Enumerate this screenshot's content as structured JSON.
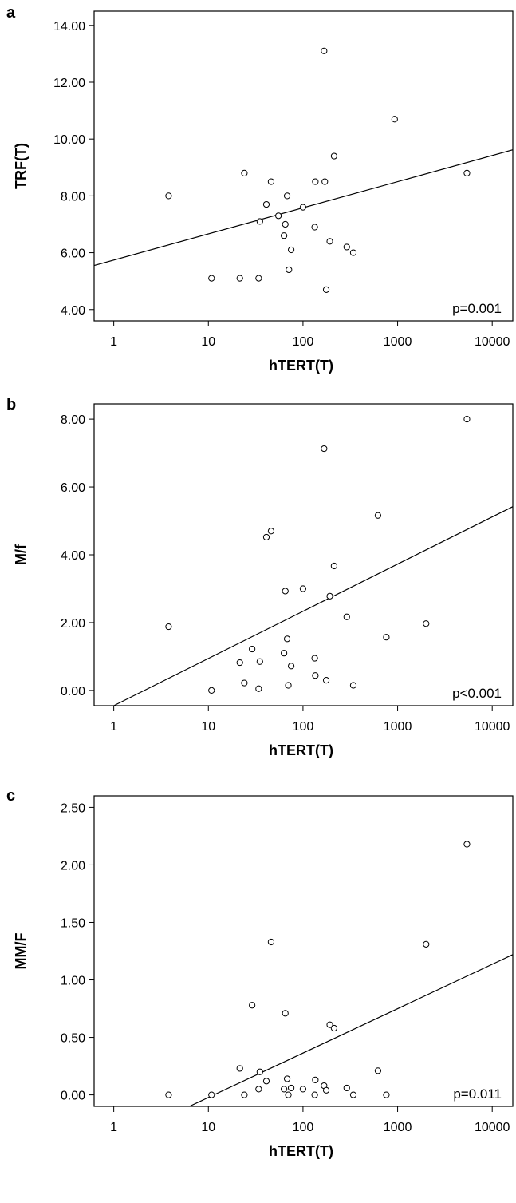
{
  "colors": {
    "background": "#ffffff",
    "ink": "#000000"
  },
  "chart_data": [
    {
      "type": "scatter",
      "panel": "a",
      "xlabel": "hTERT(T)",
      "ylabel": "TRF(T)",
      "xscale": "log",
      "xlim": [
        0.62,
        16500
      ],
      "xticks": [
        1,
        10,
        100,
        1000,
        10000
      ],
      "xtick_labels": [
        "1",
        "10",
        "100",
        "1000",
        "10000"
      ],
      "ylim": [
        3.6,
        14.5
      ],
      "yticks": [
        4,
        6,
        8,
        10,
        12,
        14
      ],
      "ytick_labels": [
        "4.00",
        "6.00",
        "8.00",
        "10.00",
        "12.00",
        "14.00"
      ],
      "annotation": "p=0.001",
      "fit_line": {
        "x": [
          0.62,
          16500
        ],
        "y": [
          5.55,
          9.62
        ]
      },
      "points": [
        {
          "x": 3.8,
          "y": 8.0
        },
        {
          "x": 10.8,
          "y": 5.1
        },
        {
          "x": 21.5,
          "y": 5.1
        },
        {
          "x": 24,
          "y": 8.8
        },
        {
          "x": 34,
          "y": 5.1
        },
        {
          "x": 35,
          "y": 7.1
        },
        {
          "x": 41,
          "y": 7.7
        },
        {
          "x": 46,
          "y": 8.5
        },
        {
          "x": 55,
          "y": 7.3
        },
        {
          "x": 63,
          "y": 6.6
        },
        {
          "x": 65,
          "y": 7.0
        },
        {
          "x": 68,
          "y": 8.0
        },
        {
          "x": 71,
          "y": 5.4
        },
        {
          "x": 75,
          "y": 6.1
        },
        {
          "x": 100,
          "y": 7.6
        },
        {
          "x": 133,
          "y": 6.9
        },
        {
          "x": 135,
          "y": 8.5
        },
        {
          "x": 167,
          "y": 13.1
        },
        {
          "x": 170,
          "y": 8.5
        },
        {
          "x": 176,
          "y": 4.7
        },
        {
          "x": 192,
          "y": 6.4
        },
        {
          "x": 213,
          "y": 9.4
        },
        {
          "x": 290,
          "y": 6.2
        },
        {
          "x": 340,
          "y": 6.0
        },
        {
          "x": 930,
          "y": 10.7
        },
        {
          "x": 5400,
          "y": 8.8
        }
      ]
    },
    {
      "type": "scatter",
      "panel": "b",
      "xlabel": "hTERT(T)",
      "ylabel": "M/f",
      "xscale": "log",
      "xlim": [
        0.62,
        16500
      ],
      "xticks": [
        1,
        10,
        100,
        1000,
        10000
      ],
      "xtick_labels": [
        "1",
        "10",
        "100",
        "1000",
        "10000"
      ],
      "ylim": [
        -0.45,
        8.45
      ],
      "yticks": [
        0,
        2,
        4,
        6,
        8
      ],
      "ytick_labels": [
        "0.00",
        "2.00",
        "4.00",
        "6.00",
        "8.00"
      ],
      "annotation": "p<0.001",
      "fit_line": {
        "x": [
          1.0,
          16500
        ],
        "y": [
          -0.45,
          5.42
        ]
      },
      "points": [
        {
          "x": 3.8,
          "y": 1.88
        },
        {
          "x": 10.8,
          "y": 0.0
        },
        {
          "x": 21.5,
          "y": 0.82
        },
        {
          "x": 24,
          "y": 0.22
        },
        {
          "x": 29,
          "y": 1.22
        },
        {
          "x": 34,
          "y": 0.05
        },
        {
          "x": 35,
          "y": 0.85
        },
        {
          "x": 41,
          "y": 4.52
        },
        {
          "x": 46,
          "y": 4.7
        },
        {
          "x": 63,
          "y": 1.1
        },
        {
          "x": 65,
          "y": 2.93
        },
        {
          "x": 68,
          "y": 1.52
        },
        {
          "x": 70,
          "y": 0.15
        },
        {
          "x": 75,
          "y": 0.72
        },
        {
          "x": 100,
          "y": 3.0
        },
        {
          "x": 133,
          "y": 0.95
        },
        {
          "x": 135,
          "y": 0.44
        },
        {
          "x": 167,
          "y": 7.13
        },
        {
          "x": 176,
          "y": 0.3
        },
        {
          "x": 192,
          "y": 2.78
        },
        {
          "x": 213,
          "y": 3.67
        },
        {
          "x": 290,
          "y": 2.17
        },
        {
          "x": 340,
          "y": 0.15
        },
        {
          "x": 620,
          "y": 5.16
        },
        {
          "x": 760,
          "y": 1.57
        },
        {
          "x": 2000,
          "y": 1.97
        },
        {
          "x": 5400,
          "y": 8.0
        }
      ]
    },
    {
      "type": "scatter",
      "panel": "c",
      "xlabel": "hTERT(T)",
      "ylabel": "MM/F",
      "xscale": "log",
      "xlim": [
        0.62,
        16500
      ],
      "xticks": [
        1,
        10,
        100,
        1000,
        10000
      ],
      "xtick_labels": [
        "1",
        "10",
        "100",
        "1000",
        "10000"
      ],
      "ylim": [
        -0.1,
        2.6
      ],
      "yticks": [
        0,
        0.5,
        1,
        1.5,
        2,
        2.5
      ],
      "ytick_labels": [
        "0.00",
        "0.50",
        "1.00",
        "1.50",
        "2.00",
        "2.50"
      ],
      "annotation": "p=0.011",
      "fit_line": {
        "x": [
          6.3,
          16500
        ],
        "y": [
          -0.1,
          1.22
        ]
      },
      "points": [
        {
          "x": 3.8,
          "y": 0.0
        },
        {
          "x": 10.8,
          "y": 0.0
        },
        {
          "x": 21.5,
          "y": 0.23
        },
        {
          "x": 24,
          "y": 0.0
        },
        {
          "x": 29,
          "y": 0.78
        },
        {
          "x": 34,
          "y": 0.05
        },
        {
          "x": 35,
          "y": 0.2
        },
        {
          "x": 41,
          "y": 0.12
        },
        {
          "x": 46,
          "y": 1.33
        },
        {
          "x": 63,
          "y": 0.05
        },
        {
          "x": 65,
          "y": 0.71
        },
        {
          "x": 68,
          "y": 0.14
        },
        {
          "x": 70,
          "y": 0.0
        },
        {
          "x": 75,
          "y": 0.06
        },
        {
          "x": 100,
          "y": 0.05
        },
        {
          "x": 133,
          "y": 0.0
        },
        {
          "x": 135,
          "y": 0.13
        },
        {
          "x": 167,
          "y": 0.08
        },
        {
          "x": 176,
          "y": 0.04
        },
        {
          "x": 192,
          "y": 0.61
        },
        {
          "x": 213,
          "y": 0.58
        },
        {
          "x": 290,
          "y": 0.06
        },
        {
          "x": 340,
          "y": 0.0
        },
        {
          "x": 620,
          "y": 0.21
        },
        {
          "x": 760,
          "y": 0.0
        },
        {
          "x": 2000,
          "y": 1.31
        },
        {
          "x": 5400,
          "y": 2.18
        }
      ]
    }
  ]
}
